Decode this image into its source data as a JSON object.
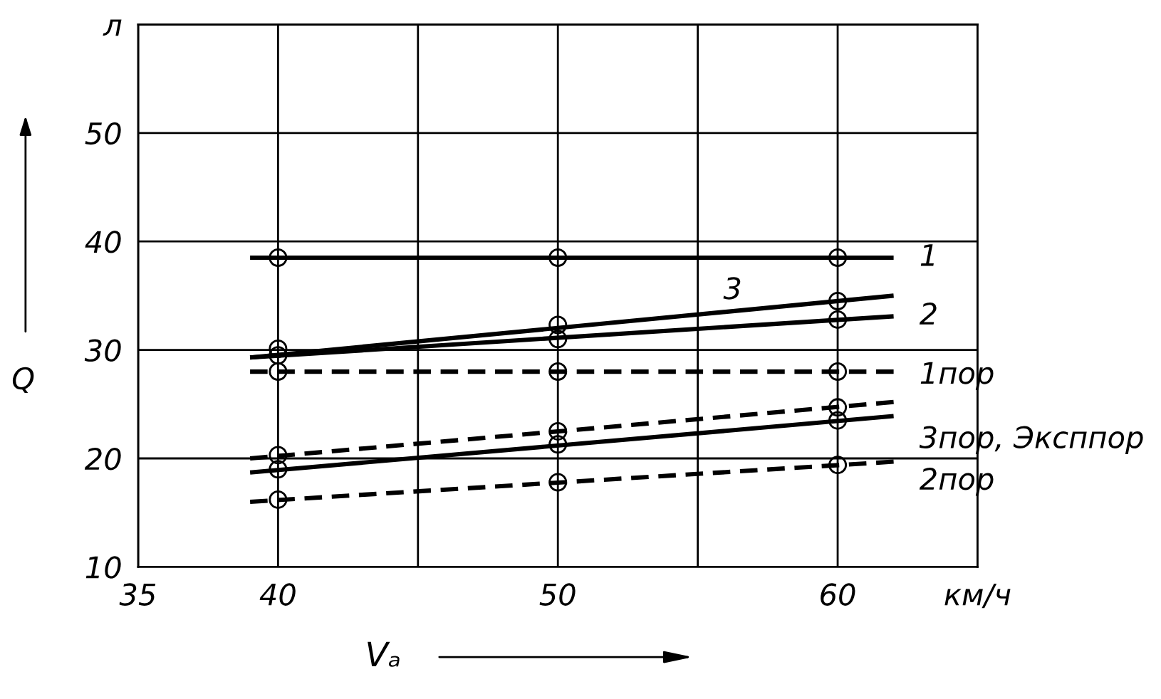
{
  "chart_data": {
    "type": "line",
    "xlabel": "Vₐ",
    "ylabel": "Q",
    "xlim": [
      35,
      65
    ],
    "ylim": [
      10,
      60
    ],
    "xticks": [
      35,
      40,
      {
        "value": 45,
        "label": null
      },
      50,
      {
        "value": 55,
        "label": null
      },
      60,
      {
        "value": 65,
        "label": "км/ч"
      }
    ],
    "yticks": [
      10,
      20,
      30,
      40,
      50,
      {
        "value": 60,
        "label": "л"
      }
    ],
    "grid": true,
    "series": [
      {
        "name": "1",
        "color": "#000000",
        "line_style": "solid",
        "x": [
          39,
          62
        ],
        "values": [
          38.5,
          38.5
        ]
      },
      {
        "name": "3",
        "color": "#000000",
        "line_style": "solid",
        "x": [
          39,
          62
        ],
        "values": [
          29.3,
          35.0
        ]
      },
      {
        "name": "2",
        "color": "#000000",
        "line_style": "solid",
        "x": [
          39,
          62
        ],
        "values": [
          29.3,
          33.1
        ]
      },
      {
        "name": "1пор",
        "color": "#000000",
        "line_style": "dashed",
        "x": [
          39,
          62
        ],
        "values": [
          28.0,
          28.0
        ]
      },
      {
        "color": "#000000",
        "line_style": "dashed",
        "x": [
          39,
          62
        ],
        "values": [
          20.0,
          25.2
        ]
      },
      {
        "name": "3пор, Эксппор",
        "color": "#000000",
        "line_style": "solid",
        "x": [
          39,
          62
        ],
        "values": [
          18.7,
          23.9
        ]
      },
      {
        "name": "2пор",
        "color": "#000000",
        "line_style": "dashed",
        "x": [
          39,
          62
        ],
        "values": [
          16.0,
          19.7
        ]
      },
      {
        "type": "scatter",
        "color": "#000000",
        "marker": "circle",
        "x": [
          40,
          50,
          60
        ],
        "values": [
          38.5,
          38.5,
          38.5
        ]
      },
      {
        "type": "scatter",
        "color": "#000000",
        "marker": "circle",
        "x": [
          40,
          50,
          60
        ],
        "values": [
          30.1,
          32.3,
          34.5
        ]
      },
      {
        "type": "scatter",
        "color": "#000000",
        "marker": "circle",
        "x": [
          40,
          50,
          60
        ],
        "values": [
          29.5,
          31.0,
          32.8
        ]
      },
      {
        "type": "scatter",
        "color": "#000000",
        "marker": "circle",
        "x": [
          40,
          50,
          60
        ],
        "values": [
          28.0,
          28.0,
          28.0
        ]
      },
      {
        "type": "scatter",
        "color": "#000000",
        "marker": "circle",
        "x": [
          40,
          50,
          60
        ],
        "values": [
          20.3,
          22.5,
          24.7
        ]
      },
      {
        "type": "scatter",
        "color": "#000000",
        "marker": "circle",
        "x": [
          40,
          50,
          60
        ],
        "values": [
          19.0,
          21.3,
          23.5
        ]
      },
      {
        "type": "scatter",
        "color": "#000000",
        "marker": "circle",
        "x": [
          40,
          50,
          60
        ],
        "values": [
          16.2,
          17.8,
          19.4
        ]
      }
    ]
  }
}
